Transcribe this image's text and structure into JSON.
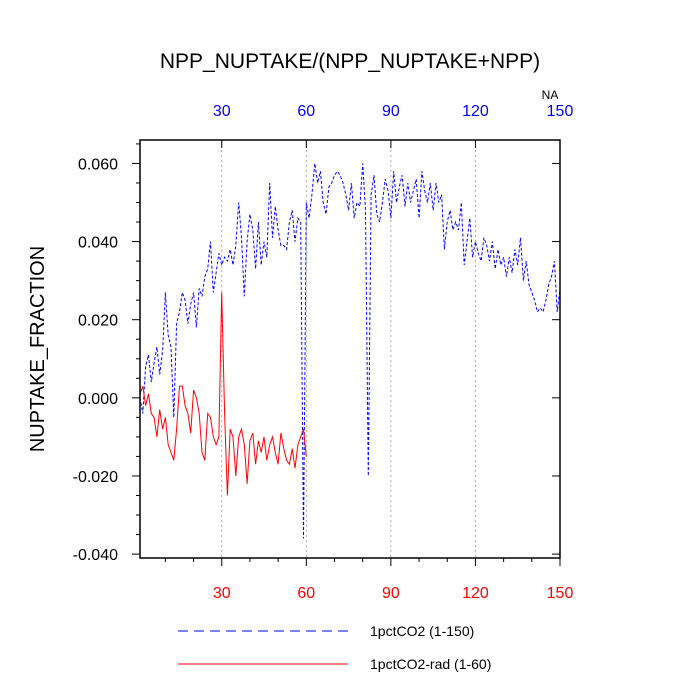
{
  "chart_data": {
    "type": "line",
    "title": "NPP_NUPTAKE/(NPP_NUPTAKE+NPP)",
    "ylabel": "NUPTAKE_FRACTION",
    "xlabel": "",
    "xlim": [
      1,
      150
    ],
    "ylim": [
      -0.041,
      0.066
    ],
    "grid_x": true,
    "grid_y": false,
    "x_ticks_bottom": [
      {
        "value": 30,
        "label": "30"
      },
      {
        "value": 60,
        "label": "60"
      },
      {
        "value": 90,
        "label": "90"
      },
      {
        "value": 120,
        "label": "120"
      },
      {
        "value": 150,
        "label": "150"
      }
    ],
    "x_ticks_top": [
      {
        "value": 30,
        "label": "30"
      },
      {
        "value": 60,
        "label": "60"
      },
      {
        "value": 90,
        "label": "90"
      },
      {
        "value": 120,
        "label": "120"
      },
      {
        "value": 150,
        "label": "150"
      }
    ],
    "top_axis_note": "NA",
    "y_ticks": [
      {
        "value": 0.06,
        "label": "0.060"
      },
      {
        "value": 0.04,
        "label": "0.040"
      },
      {
        "value": 0.02,
        "label": "0.020"
      },
      {
        "value": 0.0,
        "label": "0.000"
      },
      {
        "value": -0.02,
        "label": "-0.020"
      },
      {
        "value": -0.04,
        "label": "-0.040"
      }
    ],
    "legend_position": "bottom",
    "colors": {
      "bottom_axis_labels": "#ff0000",
      "top_axis_labels": "#0000ff",
      "grid": "#999999"
    },
    "series": [
      {
        "name": "1pctCO2 (1-150)",
        "color": "#0000ff",
        "style": "dashed",
        "x": [
          1,
          2,
          3,
          4,
          5,
          6,
          7,
          8,
          9,
          10,
          11,
          12,
          13,
          14,
          15,
          16,
          17,
          18,
          19,
          20,
          21,
          22,
          23,
          24,
          25,
          26,
          27,
          28,
          29,
          30,
          31,
          32,
          33,
          34,
          35,
          36,
          37,
          38,
          39,
          40,
          41,
          42,
          43,
          44,
          45,
          46,
          47,
          48,
          49,
          50,
          51,
          52,
          53,
          54,
          55,
          56,
          57,
          58,
          59,
          60,
          61,
          62,
          63,
          64,
          65,
          66,
          67,
          68,
          69,
          70,
          71,
          72,
          73,
          74,
          75,
          76,
          77,
          78,
          79,
          80,
          81,
          82,
          83,
          84,
          85,
          86,
          87,
          88,
          89,
          90,
          91,
          92,
          93,
          94,
          95,
          96,
          97,
          98,
          99,
          100,
          101,
          102,
          103,
          104,
          105,
          106,
          107,
          108,
          109,
          110,
          111,
          112,
          113,
          114,
          115,
          116,
          117,
          118,
          119,
          120,
          121,
          122,
          123,
          124,
          125,
          126,
          127,
          128,
          129,
          130,
          131,
          132,
          133,
          134,
          135,
          136,
          137,
          138,
          139,
          140,
          141,
          142,
          143,
          144,
          145,
          146,
          147,
          148,
          149,
          150
        ],
        "values": [
          0.0,
          -0.004,
          0.008,
          0.011,
          0.004,
          0.009,
          0.013,
          0.006,
          0.012,
          0.027,
          0.016,
          0.013,
          -0.005,
          0.019,
          0.022,
          0.027,
          0.025,
          0.019,
          0.024,
          0.027,
          0.018,
          0.028,
          0.026,
          0.031,
          0.033,
          0.04,
          0.027,
          0.032,
          0.037,
          0.034,
          0.036,
          0.035,
          0.038,
          0.034,
          0.039,
          0.05,
          0.041,
          0.026,
          0.04,
          0.047,
          0.043,
          0.033,
          0.045,
          0.034,
          0.04,
          0.036,
          0.055,
          0.041,
          0.049,
          0.043,
          0.039,
          0.039,
          0.038,
          0.045,
          0.048,
          0.04,
          0.046,
          0.045,
          -0.036,
          0.05,
          0.046,
          0.052,
          0.06,
          0.055,
          0.058,
          0.05,
          0.047,
          0.054,
          0.055,
          0.057,
          0.058,
          0.057,
          0.055,
          0.052,
          0.048,
          0.055,
          0.046,
          0.05,
          0.049,
          0.06,
          0.048,
          -0.02,
          0.052,
          0.057,
          0.047,
          0.045,
          0.05,
          0.056,
          0.053,
          0.046,
          0.058,
          0.05,
          0.054,
          0.057,
          0.049,
          0.055,
          0.05,
          0.053,
          0.056,
          0.046,
          0.058,
          0.053,
          0.05,
          0.055,
          0.048,
          0.055,
          0.05,
          0.052,
          0.038,
          0.045,
          0.048,
          0.043,
          0.045,
          0.043,
          0.05,
          0.034,
          0.04,
          0.046,
          0.036,
          0.04,
          0.037,
          0.035,
          0.041,
          0.039,
          0.035,
          0.04,
          0.033,
          0.038,
          0.034,
          0.036,
          0.031,
          0.036,
          0.032,
          0.038,
          0.034,
          0.041,
          0.03,
          0.035,
          0.029,
          0.027,
          0.025,
          0.022,
          0.023,
          0.022,
          0.025,
          0.029,
          0.031,
          0.035,
          0.022,
          0.028
        ],
        "_keep": true
      },
      {
        "name": "1pctCO2-rad (1-60)",
        "color": "#ff0000",
        "style": "solid",
        "x": [
          1,
          2,
          3,
          4,
          5,
          6,
          7,
          8,
          9,
          10,
          11,
          12,
          13,
          14,
          15,
          16,
          17,
          18,
          19,
          20,
          21,
          22,
          23,
          24,
          25,
          26,
          27,
          28,
          29,
          30,
          31,
          32,
          33,
          34,
          35,
          36,
          37,
          38,
          39,
          40,
          41,
          42,
          43,
          44,
          45,
          46,
          47,
          48,
          49,
          50,
          51,
          52,
          53,
          54,
          55,
          56,
          57,
          58,
          59,
          60
        ],
        "values": [
          0.001,
          0.003,
          -0.002,
          0.001,
          -0.004,
          -0.005,
          -0.01,
          -0.003,
          -0.008,
          -0.005,
          -0.012,
          -0.014,
          -0.016,
          -0.008,
          0.003,
          0.003,
          -0.002,
          -0.004,
          -0.009,
          0.002,
          0.0,
          -0.004,
          -0.014,
          -0.016,
          -0.004,
          -0.005,
          -0.01,
          -0.012,
          -0.01,
          0.027,
          -0.004,
          -0.025,
          -0.008,
          -0.01,
          -0.02,
          -0.01,
          -0.008,
          -0.012,
          -0.022,
          -0.011,
          -0.009,
          -0.017,
          -0.011,
          -0.014,
          -0.01,
          -0.016,
          -0.012,
          -0.01,
          -0.014,
          -0.017,
          -0.009,
          -0.013,
          -0.016,
          -0.017,
          -0.013,
          -0.018,
          -0.012,
          -0.01,
          -0.008,
          -0.015
        ]
      }
    ]
  }
}
